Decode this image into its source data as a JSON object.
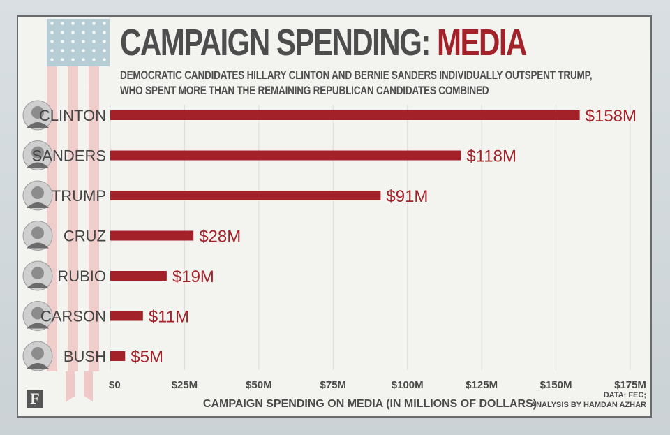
{
  "header": {
    "title_main": "CAMPAIGN SPENDING: ",
    "title_accent": "MEDIA",
    "subtitle_line1": "DEMOCRATIC CANDIDATES HILLARY CLINTON AND BERNIE SANDERS INDIVIDUALLY OUTSPENT TRUMP,",
    "subtitle_line2": "WHO SPENT MORE THAN THE REMAINING REPUBLICAN CANDIDATES COMBINED"
  },
  "footer": {
    "logo": "F",
    "source_line1": "DATA: FEC;",
    "source_line2": "ANALYSIS BY HAMDAN AZHAR"
  },
  "colors": {
    "bar": "#a3222a",
    "title": "#4d4d4d",
    "accent": "#a3222a",
    "grid": "#dcdcdc"
  },
  "chart_data": {
    "type": "bar",
    "orientation": "horizontal",
    "title": "CAMPAIGN SPENDING: MEDIA",
    "xlabel": "CAMPAIGN SPENDING ON MEDIA (IN MILLIONS OF DOLLARS)",
    "ylabel": "",
    "xlim": [
      0,
      175
    ],
    "grid": true,
    "categories": [
      "CLINTON",
      "SANDERS",
      "TRUMP",
      "CRUZ",
      "RUBIO",
      "CARSON",
      "BUSH"
    ],
    "values": [
      158,
      118,
      91,
      28,
      19,
      11,
      5
    ],
    "value_labels": [
      "$158M",
      "$118M",
      "$91M",
      "$28M",
      "$19M",
      "$11M",
      "$5M"
    ],
    "ticks": [
      0,
      25,
      50,
      75,
      100,
      125,
      150,
      175
    ],
    "tick_labels": [
      "$0",
      "$25M",
      "$50M",
      "$75M",
      "$100M",
      "$125M",
      "$150M",
      "$175M"
    ]
  }
}
